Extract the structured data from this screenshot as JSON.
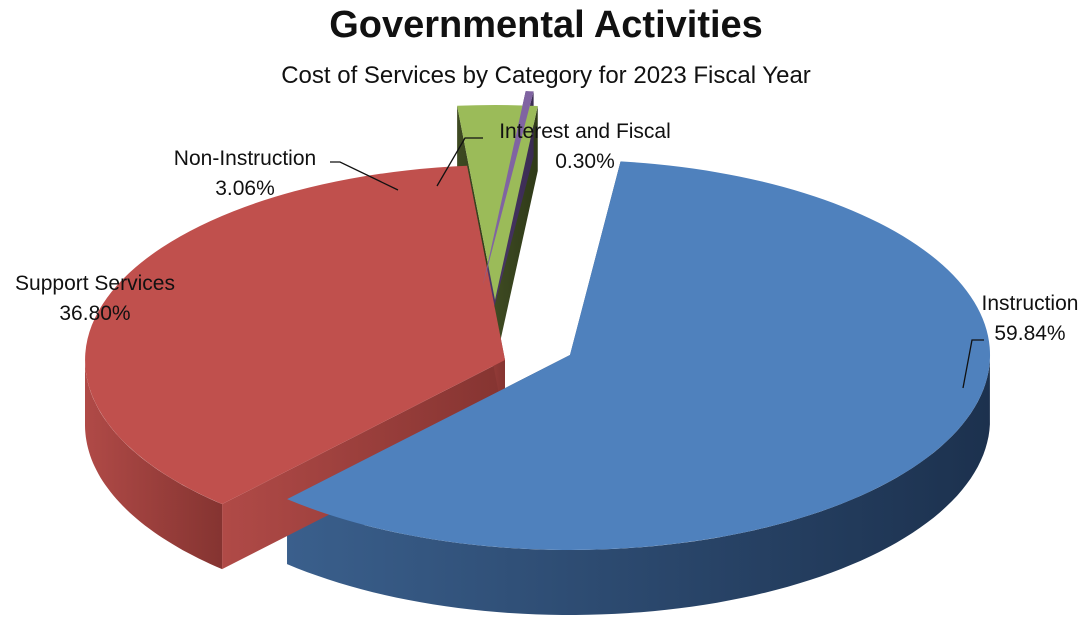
{
  "title": "Governmental Activities",
  "subtitle": "Cost of Services by Category for 2023 Fiscal Year",
  "chart_data": {
    "type": "pie",
    "style": "3d-exploded",
    "title": "Governmental Activities",
    "subtitle": "Cost of Services by Category for 2023 Fiscal Year",
    "legend": "none",
    "slices": [
      {
        "label": "Instruction",
        "value": 59.84,
        "value_label": "59.84%",
        "color": "#4f81bd"
      },
      {
        "label": "Support Services",
        "value": 36.8,
        "value_label": "36.80%",
        "color": "#c0504d"
      },
      {
        "label": "Non-Instruction",
        "value": 3.06,
        "value_label": "3.06%",
        "color": "#9bbb59"
      },
      {
        "label": "Interest and Fiscal",
        "value": 0.3,
        "value_label": "0.30%",
        "color": "#8064a2"
      }
    ]
  }
}
